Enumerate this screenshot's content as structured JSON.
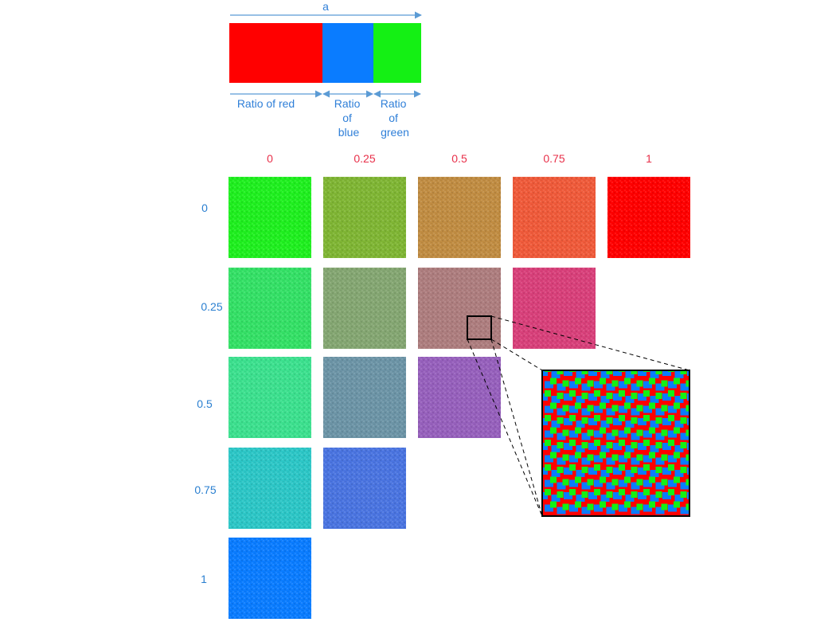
{
  "top_bar": {
    "width_label": "a",
    "segments": [
      {
        "color": "#ff0000",
        "ratio": 0.49
      },
      {
        "color": "#0a7cff",
        "ratio": 0.26
      },
      {
        "color": "#14f014",
        "ratio": 0.25
      }
    ],
    "ratio_labels": {
      "red": "Ratio of red",
      "blue": [
        "Ratio",
        "of",
        "blue"
      ],
      "green": [
        "Ratio",
        "of",
        "green"
      ]
    }
  },
  "grid": {
    "column_headers": [
      "0",
      "0.25",
      "0.5",
      "0.75",
      "1"
    ],
    "row_headers": [
      "0",
      "0.25",
      "0.5",
      "0.75",
      "1"
    ],
    "header_colors": {
      "columns": "#e8304a",
      "rows": "#2a7fd0"
    },
    "cells": [
      [
        {
          "tint": "#1fef1f"
        },
        {
          "tint": "#7fb534"
        },
        {
          "tint": "#c08c42"
        },
        {
          "tint": "#ef5a3a"
        },
        {
          "tint": "#ff0000"
        }
      ],
      [
        {
          "tint": "#34e066"
        },
        {
          "tint": "#84a672"
        },
        {
          "tint": "#ad7d7e"
        },
        {
          "tint": "#d8407a"
        }
      ],
      [
        {
          "tint": "#3ce08e"
        },
        {
          "tint": "#6c94a6"
        },
        {
          "tint": "#9660bc"
        }
      ],
      [
        {
          "tint": "#2cc6c6"
        },
        {
          "tint": "#4a74e0"
        }
      ],
      [
        {
          "tint": "#0a7cff"
        }
      ]
    ]
  },
  "zoom": {
    "source": "cell r1 c2",
    "colors": {
      "base": "#ff0000",
      "a": "#0a7cff",
      "b": "#14f014"
    }
  }
}
